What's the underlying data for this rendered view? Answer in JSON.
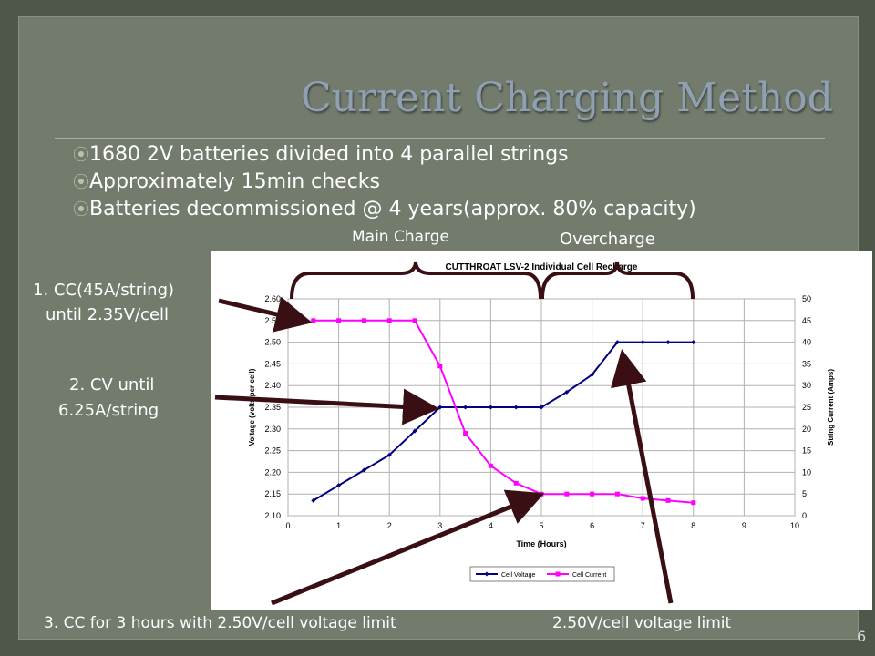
{
  "slide": {
    "title": "Current Charging Method",
    "bullets": [
      "1680 2V batteries divided into 4 parallel strings",
      "Approximately 15min checks",
      "Batteries decommissioned @ 4 years(approx. 80% capacity)"
    ],
    "bullet_glyph": "⦿",
    "page_number": "6"
  },
  "labels": {
    "main_charge": "Main Charge",
    "overcharge": "Overcharge",
    "cc_line1": "1. CC(45A/string)",
    "cc_line2": "until 2.35V/cell",
    "cv_line1": "2. CV until",
    "cv_line2": "6.25A/string",
    "cc3": "3. CC for 3 hours with 2.50V/cell voltage limit",
    "limit": "2.50V/cell voltage limit"
  },
  "colors": {
    "voltage": "#000080",
    "current": "#ff00ff",
    "arrow": "#3a0f14",
    "bracket": "#3a0f14",
    "title": "#8fa0b2"
  },
  "chart_data": {
    "type": "line",
    "title": "CUTTHROAT LSV-2 Individual Cell Recharge",
    "xlabel": "Time (Hours)",
    "ylabel": "Voltage (volts per cell)",
    "y2label": "String Current (Amps)",
    "xlim": [
      0,
      10
    ],
    "ylim": [
      2.1,
      2.6
    ],
    "y2lim": [
      0,
      50
    ],
    "x_ticks": [
      "0",
      "1",
      "2",
      "3",
      "4",
      "5",
      "6",
      "7",
      "8",
      "9",
      "10"
    ],
    "y_ticks": [
      "2.10",
      "2.15",
      "2.20",
      "2.25",
      "2.30",
      "2.35",
      "2.40",
      "2.45",
      "2.50",
      "2.55",
      "2.60"
    ],
    "y2_ticks": [
      "0",
      "5",
      "10",
      "15",
      "20",
      "25",
      "30",
      "35",
      "40",
      "45",
      "50"
    ],
    "grid": true,
    "legend": "bottom-left",
    "series": [
      {
        "name": "Cell Voltage",
        "axis": "left",
        "x": [
          0.5,
          1.0,
          1.5,
          2.0,
          2.5,
          3.0,
          3.5,
          4.0,
          4.5,
          5.0,
          5.5,
          6.0,
          6.5,
          7.0,
          7.5,
          8.0
        ],
        "y": [
          2.135,
          2.17,
          2.205,
          2.24,
          2.295,
          2.35,
          2.35,
          2.35,
          2.35,
          2.35,
          2.385,
          2.425,
          2.5,
          2.5,
          2.5,
          2.5
        ]
      },
      {
        "name": "Cell Current",
        "axis": "right",
        "x": [
          0.5,
          1.0,
          1.5,
          2.0,
          2.5,
          3.0,
          3.5,
          4.0,
          4.5,
          5.0,
          5.5,
          6.0,
          6.5,
          7.0,
          7.5,
          8.0
        ],
        "y": [
          45,
          45,
          45,
          45,
          45,
          34.5,
          19,
          11.5,
          7.5,
          5,
          5,
          5,
          5,
          4,
          3.5,
          3
        ]
      }
    ]
  }
}
